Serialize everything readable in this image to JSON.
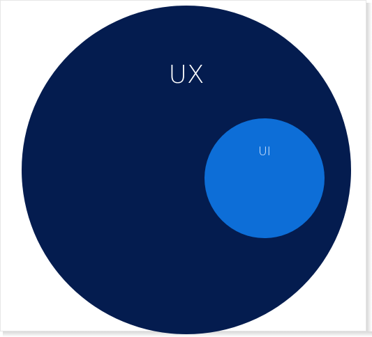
{
  "diagram": {
    "outer": {
      "label": "UX",
      "fill": "#041c4f",
      "text_color": "#ffffff"
    },
    "inner": {
      "label": "UI",
      "fill": "#0d6ed7",
      "text_color": "#e8f1ff"
    }
  }
}
